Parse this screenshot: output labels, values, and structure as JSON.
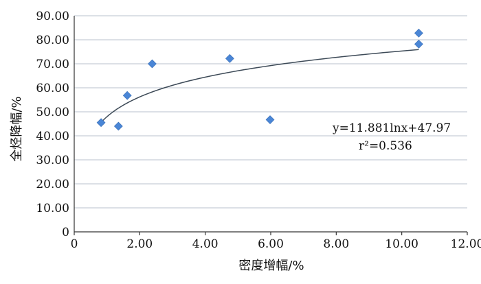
{
  "chart_data": {
    "type": "scatter",
    "title": "",
    "xlabel": "密度增幅/%",
    "ylabel": "全烃降幅/%",
    "xlim": [
      0,
      12
    ],
    "ylim": [
      0,
      90
    ],
    "x_ticks": [
      0,
      2,
      4,
      6,
      8,
      10,
      12
    ],
    "y_ticks": [
      0,
      10,
      20,
      30,
      40,
      50,
      60,
      70,
      80,
      90
    ],
    "x_tick_labels": [
      "0",
      "2.00",
      "4.00",
      "6.00",
      "8.00",
      "10.00",
      "12.00"
    ],
    "y_tick_labels": [
      "0",
      "10.00",
      "20.00",
      "30.00",
      "40.00",
      "50.00",
      "60.00",
      "70.00",
      "80.00",
      "90.00"
    ],
    "grid": "horizontal",
    "points": [
      {
        "x": 0.82,
        "y": 45.5
      },
      {
        "x": 1.35,
        "y": 44.0
      },
      {
        "x": 1.62,
        "y": 56.8
      },
      {
        "x": 2.38,
        "y": 70.0
      },
      {
        "x": 4.75,
        "y": 72.2
      },
      {
        "x": 5.98,
        "y": 46.7
      },
      {
        "x": 10.52,
        "y": 82.8
      },
      {
        "x": 10.52,
        "y": 78.2
      }
    ],
    "trendline": {
      "type": "logarithmic",
      "a": 11.881,
      "b": 47.97,
      "x_range": [
        0.82,
        10.52
      ]
    },
    "annotations": {
      "equation": "y=11.881lnx+47.97",
      "r_squared": "r²=0.536"
    },
    "colors": {
      "marker": "#4a86d6",
      "trendline": "#3d4a57",
      "grid": "#b9c2cc"
    },
    "marker_shape": "diamond"
  }
}
